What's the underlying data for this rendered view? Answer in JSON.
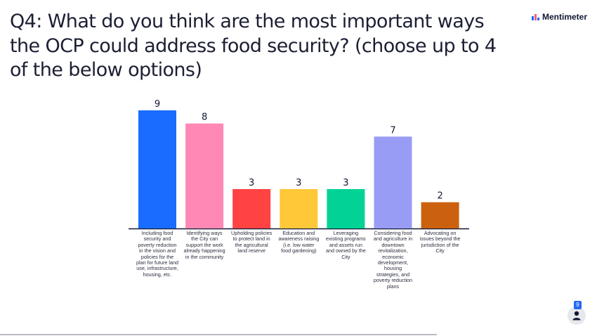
{
  "question": "Q4: What do you think are the most important ways the OCP could address food security? (choose up to 4 of the below options)",
  "brand": {
    "name": "Mentimeter",
    "icon": "mentimeter-logo-icon"
  },
  "participants": {
    "count": "9",
    "icon": "person-icon"
  },
  "chart_data": {
    "type": "bar",
    "categories": [
      "Including food security and poverty reduction in the vision and policies for the plan for future land use, infrastructure, housing, etc.",
      "Identifying ways the City can support the work already happening in the community",
      "Upholding policies to protect land in the agricultural land reserve",
      "Education and awareness raising (i.e. low water food gardening)",
      "Leveraging existing programs and assets run and owned by the City",
      "Considering food and agriculture in downtown revitalization, economic development, housing strategies, and poverty reduction plans",
      "Advocating on issues beyond the jurisdiction of the City"
    ],
    "values": [
      9,
      8,
      3,
      3,
      3,
      7,
      2
    ],
    "colors": [
      "#196cff",
      "#ff88b4",
      "#ff4342",
      "#ffc838",
      "#02d395",
      "#999cf5",
      "#cb610e"
    ],
    "ylim": [
      0,
      9
    ],
    "grid": false,
    "title": "",
    "xlabel": "",
    "ylabel": ""
  }
}
